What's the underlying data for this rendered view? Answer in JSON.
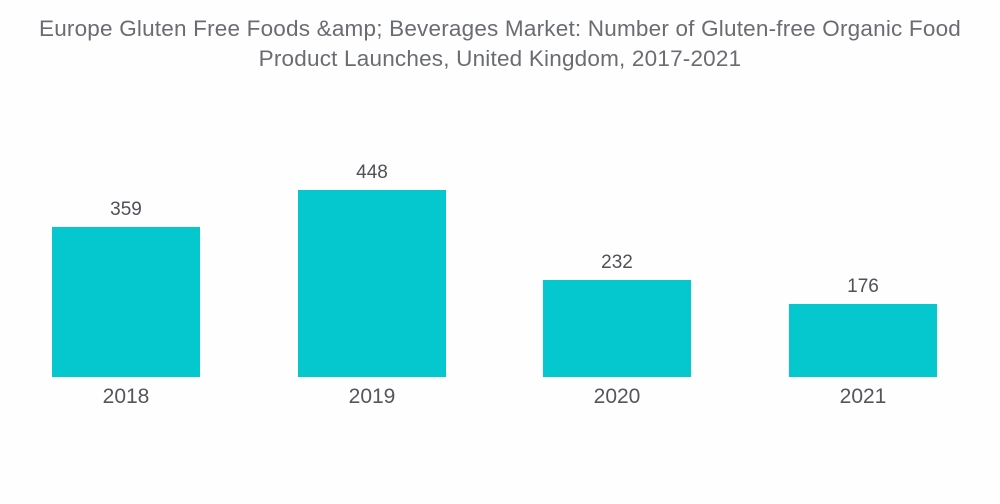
{
  "title": {
    "line1": "Europe Gluten Free Foods &amp; Beverages Market: Number of Gluten-free Organic Food",
    "line2": "Product Launches, United Kingdom, 2017-2021"
  },
  "colors": {
    "bar": "#04c8ce",
    "title_text": "#696d71",
    "label_text": "#4e5256",
    "background": "#fefefe"
  },
  "chart_data": {
    "type": "bar",
    "title": "Europe Gluten Free Foods &amp; Beverages Market: Number of Gluten-free Organic Food Product Launches, United Kingdom, 2017-2021",
    "categories": [
      "2018",
      "2019",
      "2020",
      "2021"
    ],
    "values": [
      359,
      448,
      232,
      176
    ],
    "value_labels": [
      "359",
      "448",
      "232",
      "176"
    ],
    "xlabel": "",
    "ylabel": "",
    "ylim": [
      0,
      448
    ],
    "grid": false,
    "legend": false,
    "axis_lines": false
  }
}
